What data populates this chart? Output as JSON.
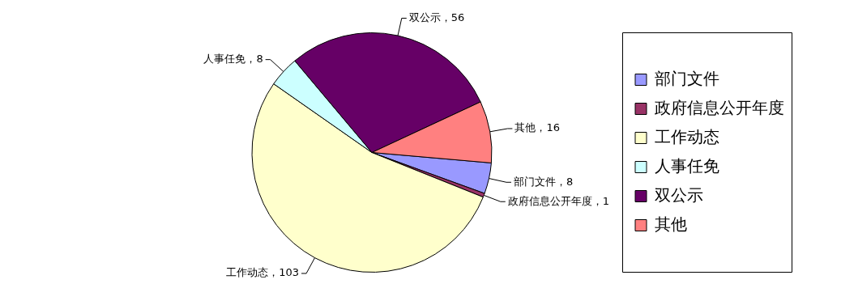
{
  "chart_data": {
    "type": "pie",
    "categories": [
      "部门文件",
      "政府信息公开年度",
      "工作动态",
      "人事任免",
      "双公示",
      "其他"
    ],
    "values": [
      8,
      1,
      103,
      8,
      56,
      16
    ],
    "colors": [
      "#9999ff",
      "#993366",
      "#ffffcc",
      "#ccffff",
      "#660066",
      "#ff8080"
    ],
    "value_labels": [
      "部门文件，8",
      "政府信息公开年度，1",
      "工作动态，103",
      "人事任免，8",
      "双公示，56",
      "其他，16"
    ],
    "legend": "right"
  }
}
